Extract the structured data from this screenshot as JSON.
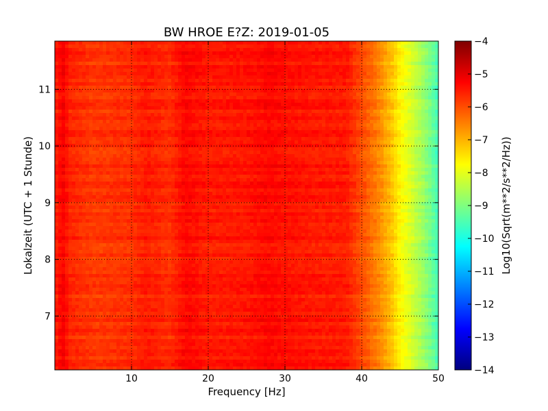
{
  "chart_data": {
    "type": "heatmap",
    "title": "BW HROE E?Z: 2019-01-05",
    "xlabel": "Frequency [Hz]",
    "ylabel": "Lokalzeit (UTC + 1 Stunde)",
    "xlim": [
      0,
      50
    ],
    "ylim": [
      11.85,
      6.05
    ],
    "x_ticks": [
      10,
      20,
      30,
      40,
      50
    ],
    "y_ticks": [
      7,
      8,
      9,
      10,
      11
    ],
    "grid": true,
    "colormap": "jet",
    "colorbar": {
      "label": "Log10(Sqrt(m**2/s**2/Hz))",
      "range": [
        -14,
        -4
      ],
      "ticks": [
        -4,
        -5,
        -6,
        -7,
        -8,
        -9,
        -10,
        -11,
        -12,
        -13,
        -14
      ]
    },
    "frequency_profile": {
      "x": [
        0,
        1,
        2,
        5,
        10,
        12,
        15,
        17,
        20,
        25,
        28,
        30,
        35,
        38,
        40,
        42,
        44,
        45,
        46,
        48,
        50
      ],
      "values": [
        -5.6,
        -5.2,
        -5.6,
        -5.8,
        -5.7,
        -5.5,
        -5.7,
        -5.3,
        -5.5,
        -5.45,
        -5.3,
        -5.4,
        -5.5,
        -5.5,
        -6.0,
        -6.5,
        -7.2,
        -7.7,
        -8.0,
        -8.7,
        -9.6
      ]
    }
  },
  "colors": {
    "jet": [
      "#00007f",
      "#0000ff",
      "#007fff",
      "#00ffff",
      "#7fff7f",
      "#ffff00",
      "#ff7f00",
      "#ff0000",
      "#7f0000"
    ]
  }
}
